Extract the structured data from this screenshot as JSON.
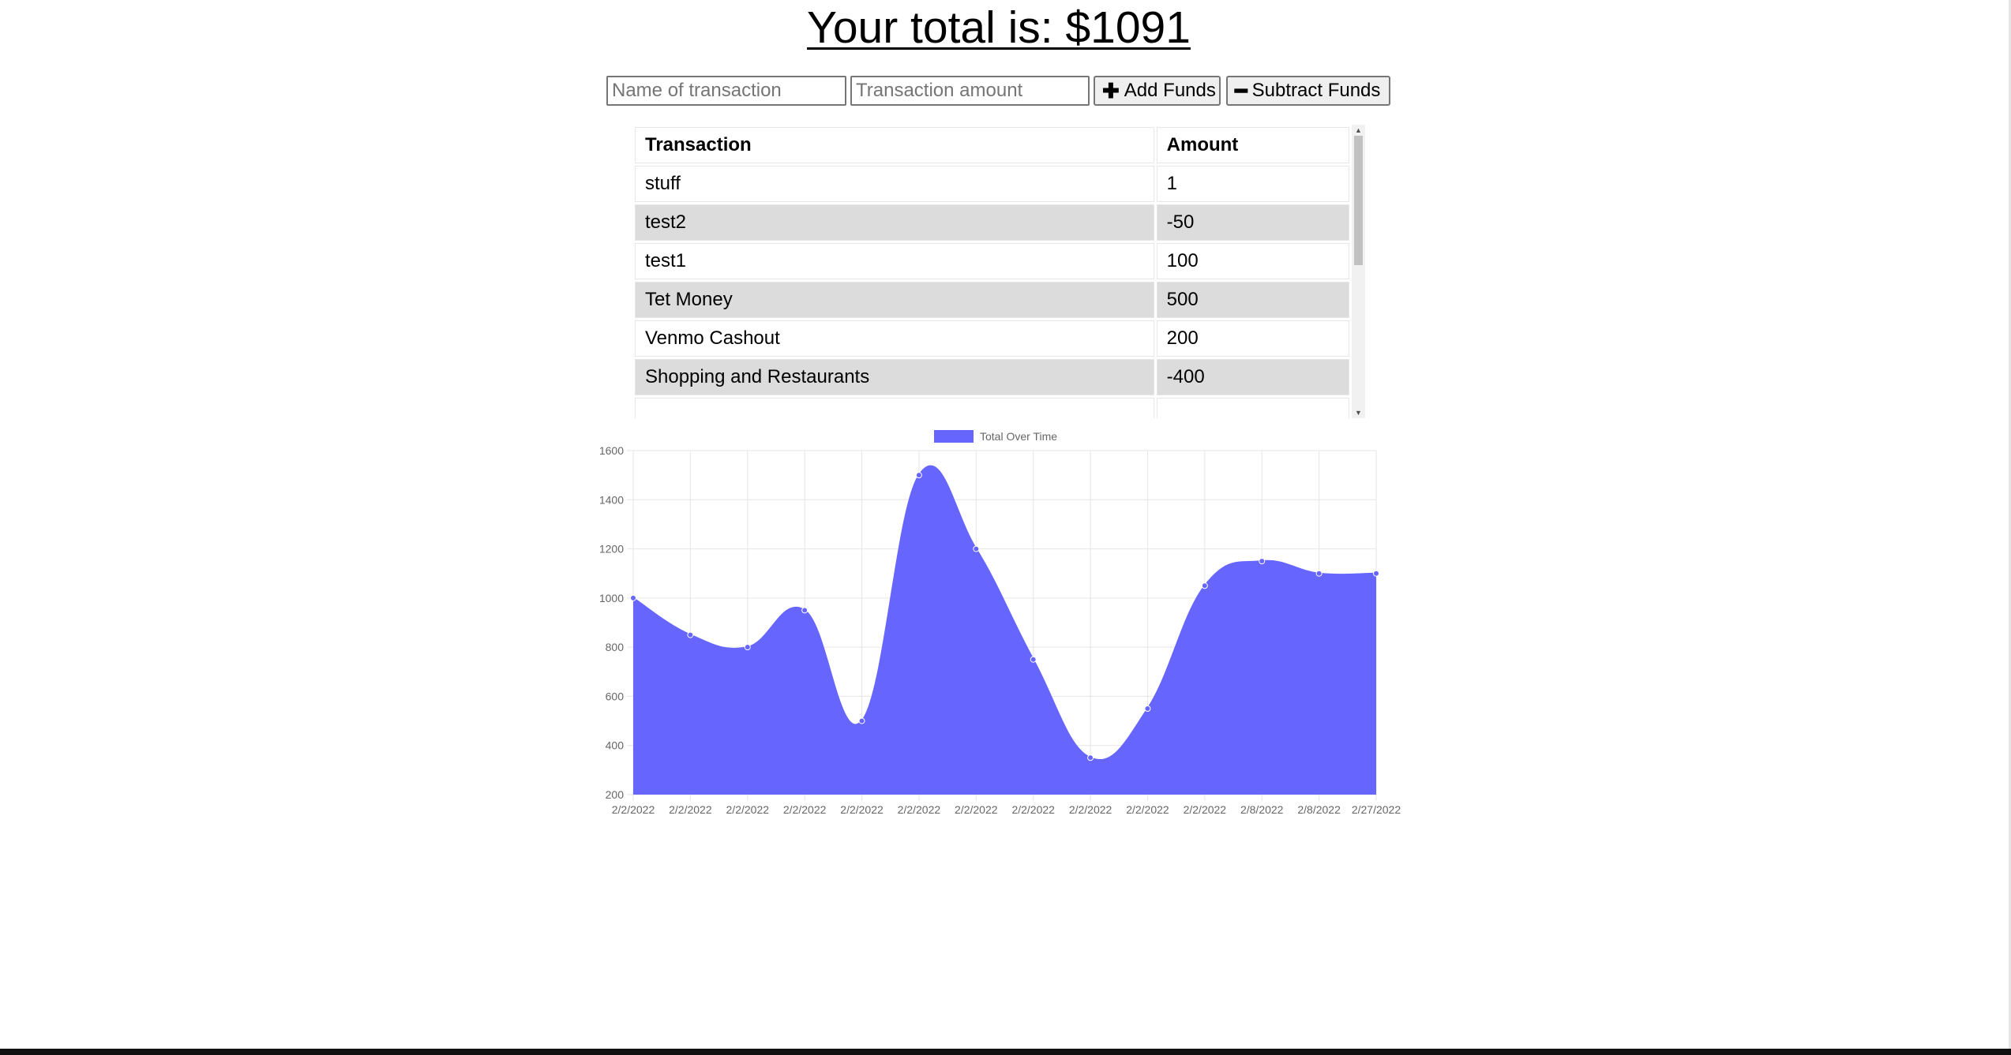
{
  "header": {
    "total_text": "Your total is: $1091"
  },
  "form": {
    "name_placeholder": "Name of transaction",
    "amount_placeholder": "Transaction amount",
    "add_label": "Add Funds",
    "subtract_label": "Subtract Funds",
    "add_icon": "plus-icon",
    "subtract_icon": "minus-icon"
  },
  "table": {
    "headers": [
      "Transaction",
      "Amount"
    ],
    "rows": [
      {
        "name": "stuff",
        "amount": "1"
      },
      {
        "name": "test2",
        "amount": "-50"
      },
      {
        "name": "test1",
        "amount": "100"
      },
      {
        "name": "Tet Money",
        "amount": "500"
      },
      {
        "name": "Venmo Cashout",
        "amount": "200"
      },
      {
        "name": "Shopping and Restaurants",
        "amount": "-400"
      }
    ]
  },
  "chart_data": {
    "type": "area",
    "legend": "Total Over Time",
    "legend_position": "top-center",
    "grid": true,
    "ylim": [
      200,
      1600
    ],
    "yticks": [
      200,
      400,
      600,
      800,
      1000,
      1200,
      1400,
      1600
    ],
    "x": [
      "2/2/2022",
      "2/2/2022",
      "2/2/2022",
      "2/2/2022",
      "2/2/2022",
      "2/2/2022",
      "2/2/2022",
      "2/2/2022",
      "2/2/2022",
      "2/2/2022",
      "2/2/2022",
      "2/8/2022",
      "2/8/2022",
      "2/27/2022"
    ],
    "values": [
      1000,
      850,
      800,
      950,
      500,
      1500,
      1200,
      750,
      350,
      550,
      1050,
      1150,
      1100,
      1100
    ],
    "fill_color": "#6666ff"
  }
}
